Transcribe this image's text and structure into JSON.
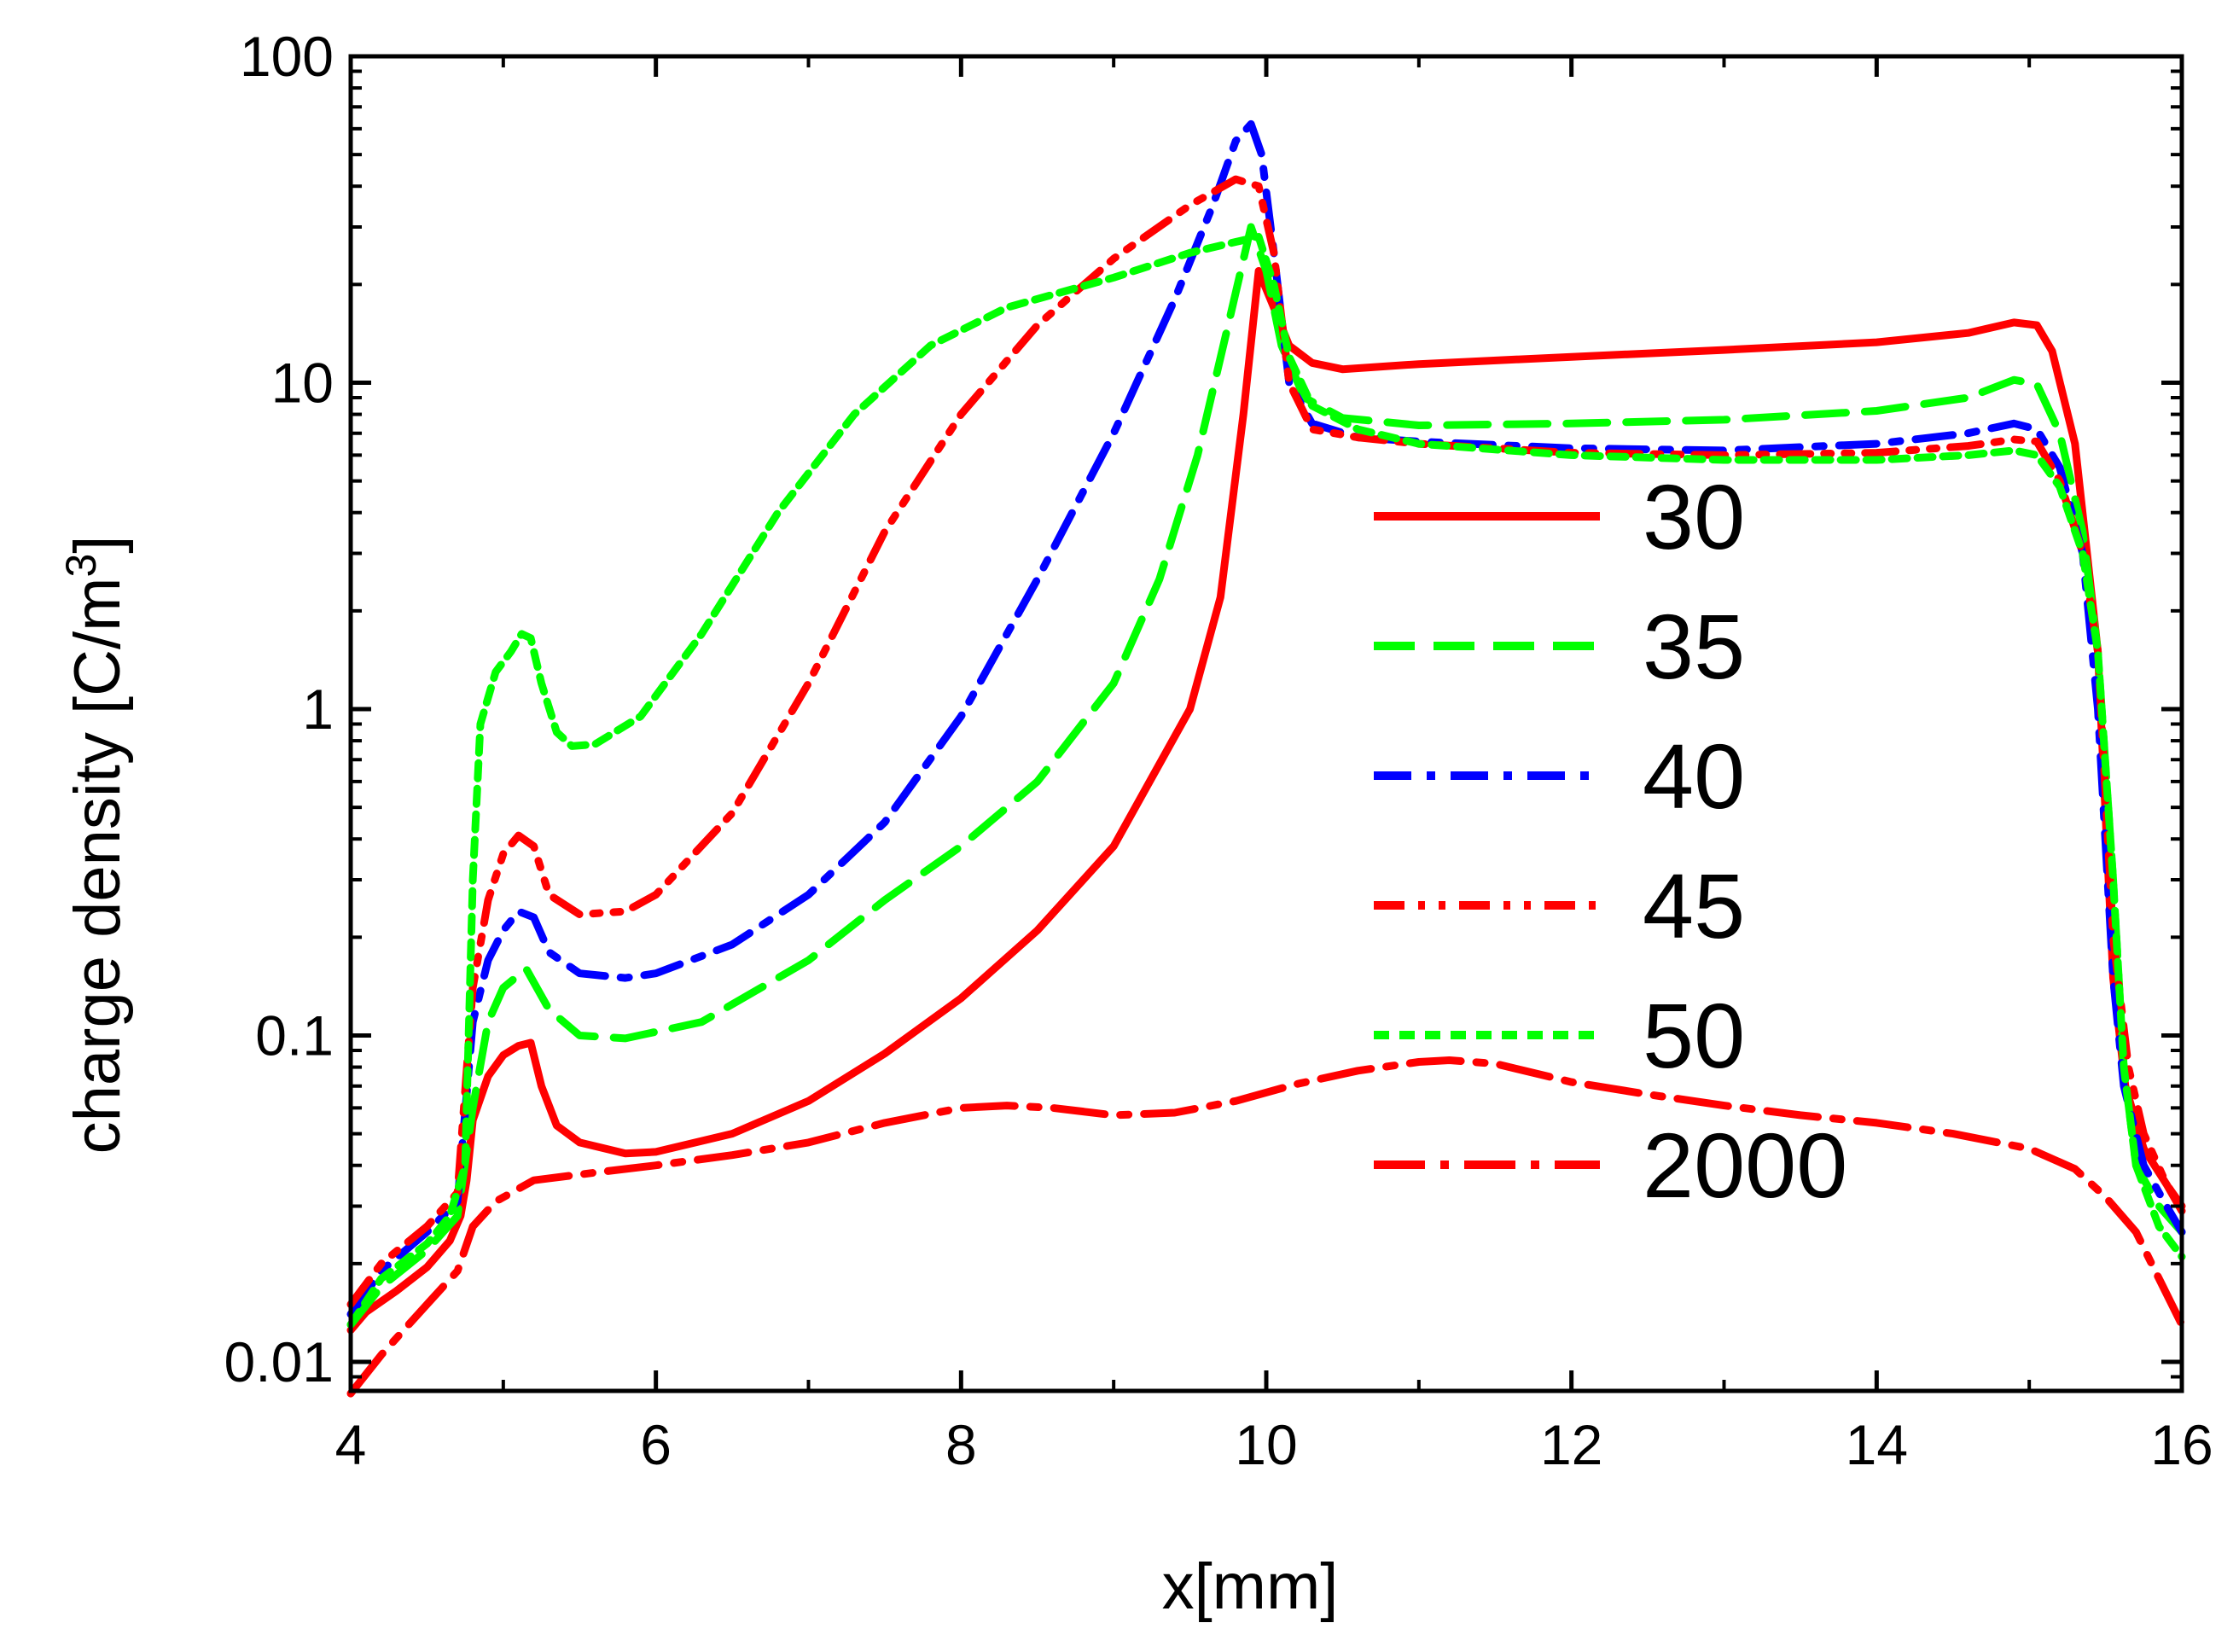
{
  "chart_data": {
    "type": "line",
    "title": "",
    "xlabel": "x[mm]",
    "ylabel": {
      "main": "charge density [C/m",
      "sup": "3",
      "close": "]"
    },
    "x_scale": "linear",
    "y_scale": "log",
    "xlim": [
      4,
      16
    ],
    "ylim": [
      0.008,
      100
    ],
    "x_ticks": [
      4,
      6,
      8,
      10,
      12,
      14,
      16
    ],
    "x_tick_labels": [
      "4",
      "6",
      "8",
      "10",
      "12",
      "14",
      "16"
    ],
    "y_ticks": [
      0.01,
      0.1,
      1,
      10,
      100
    ],
    "y_tick_labels": [
      "0.01",
      "0.1",
      "1",
      "10",
      "100"
    ],
    "grid": false,
    "legend_position": "right-center",
    "series": [
      {
        "name": "30",
        "color": "#ff0000",
        "dash": "solid",
        "points": [
          [
            4.0,
            0.0125
          ],
          [
            4.1,
            0.0142
          ],
          [
            4.3,
            0.0165
          ],
          [
            4.5,
            0.0195
          ],
          [
            4.65,
            0.0235
          ],
          [
            4.72,
            0.028
          ],
          [
            4.76,
            0.036
          ],
          [
            4.8,
            0.055
          ],
          [
            4.9,
            0.075
          ],
          [
            5.0,
            0.087
          ],
          [
            5.1,
            0.093
          ],
          [
            5.18,
            0.095
          ],
          [
            5.25,
            0.07
          ],
          [
            5.35,
            0.053
          ],
          [
            5.5,
            0.047
          ],
          [
            5.8,
            0.0435
          ],
          [
            6.0,
            0.044
          ],
          [
            6.5,
            0.05
          ],
          [
            7.0,
            0.063
          ],
          [
            7.5,
            0.088
          ],
          [
            8.0,
            0.13
          ],
          [
            8.5,
            0.21
          ],
          [
            9.0,
            0.38
          ],
          [
            9.5,
            1.0
          ],
          [
            9.7,
            2.2
          ],
          [
            9.85,
            8.0
          ],
          [
            9.95,
            22.0
          ],
          [
            10.05,
            17.0
          ],
          [
            10.15,
            13.0
          ],
          [
            10.3,
            11.5
          ],
          [
            10.5,
            11.0
          ],
          [
            11.0,
            11.4
          ],
          [
            12.0,
            12.0
          ],
          [
            13.0,
            12.6
          ],
          [
            14.0,
            13.3
          ],
          [
            14.6,
            14.2
          ],
          [
            14.9,
            15.3
          ],
          [
            15.05,
            15.0
          ],
          [
            15.15,
            12.5
          ],
          [
            15.3,
            6.5
          ],
          [
            15.45,
            1.5
          ],
          [
            15.55,
            0.15
          ],
          [
            15.63,
            0.07
          ],
          [
            15.75,
            0.045
          ],
          [
            15.9,
            0.035
          ],
          [
            16.0,
            0.029
          ]
        ]
      },
      {
        "name": "35",
        "color": "#00ff00",
        "dash": "long-dash",
        "points": [
          [
            4.0,
            0.013
          ],
          [
            4.2,
            0.017
          ],
          [
            4.5,
            0.022
          ],
          [
            4.7,
            0.028
          ],
          [
            4.8,
            0.06
          ],
          [
            4.9,
            0.11
          ],
          [
            5.0,
            0.14
          ],
          [
            5.15,
            0.16
          ],
          [
            5.3,
            0.12
          ],
          [
            5.5,
            0.1
          ],
          [
            5.8,
            0.098
          ],
          [
            6.3,
            0.11
          ],
          [
            7.0,
            0.17
          ],
          [
            7.5,
            0.26
          ],
          [
            8.0,
            0.38
          ],
          [
            8.5,
            0.6
          ],
          [
            9.0,
            1.2
          ],
          [
            9.3,
            2.5
          ],
          [
            9.55,
            6.0
          ],
          [
            9.75,
            15.0
          ],
          [
            9.9,
            30.0
          ],
          [
            10.0,
            22.0
          ],
          [
            10.1,
            13.0
          ],
          [
            10.25,
            9.0
          ],
          [
            10.5,
            7.8
          ],
          [
            11.0,
            7.4
          ],
          [
            12.0,
            7.5
          ],
          [
            13.0,
            7.7
          ],
          [
            14.0,
            8.2
          ],
          [
            14.6,
            9.0
          ],
          [
            14.9,
            10.2
          ],
          [
            15.05,
            9.9
          ],
          [
            15.2,
            7.0
          ],
          [
            15.35,
            3.5
          ],
          [
            15.45,
            1.5
          ],
          [
            15.55,
            0.3
          ],
          [
            15.62,
            0.08
          ],
          [
            15.7,
            0.04
          ],
          [
            15.85,
            0.03
          ],
          [
            16.0,
            0.025
          ]
        ]
      },
      {
        "name": "40",
        "color": "#0000ff",
        "dash": "dash-dot",
        "points": [
          [
            4.0,
            0.014
          ],
          [
            4.2,
            0.019
          ],
          [
            4.5,
            0.025
          ],
          [
            4.7,
            0.031
          ],
          [
            4.8,
            0.11
          ],
          [
            4.9,
            0.17
          ],
          [
            5.0,
            0.21
          ],
          [
            5.1,
            0.24
          ],
          [
            5.2,
            0.23
          ],
          [
            5.3,
            0.18
          ],
          [
            5.5,
            0.155
          ],
          [
            5.8,
            0.15
          ],
          [
            6.0,
            0.155
          ],
          [
            6.5,
            0.19
          ],
          [
            7.0,
            0.27
          ],
          [
            7.5,
            0.45
          ],
          [
            8.0,
            0.95
          ],
          [
            8.5,
            2.5
          ],
          [
            9.0,
            7.0
          ],
          [
            9.4,
            18.0
          ],
          [
            9.65,
            35.0
          ],
          [
            9.8,
            55.0
          ],
          [
            9.9,
            62.0
          ],
          [
            9.97,
            50.0
          ],
          [
            10.05,
            25.0
          ],
          [
            10.15,
            10.0
          ],
          [
            10.3,
            7.5
          ],
          [
            10.6,
            6.8
          ],
          [
            11.0,
            6.6
          ],
          [
            12.0,
            6.3
          ],
          [
            13.0,
            6.2
          ],
          [
            14.0,
            6.5
          ],
          [
            14.6,
            7.0
          ],
          [
            14.9,
            7.5
          ],
          [
            15.05,
            7.2
          ],
          [
            15.2,
            5.5
          ],
          [
            15.35,
            3.0
          ],
          [
            15.45,
            1.0
          ],
          [
            15.55,
            0.15
          ],
          [
            15.62,
            0.07
          ],
          [
            15.75,
            0.04
          ],
          [
            15.9,
            0.03
          ],
          [
            16.0,
            0.025
          ]
        ]
      },
      {
        "name": "45",
        "color": "#ff0000",
        "dash": "dash-dot-dot",
        "points": [
          [
            4.0,
            0.015
          ],
          [
            4.2,
            0.02
          ],
          [
            4.5,
            0.026
          ],
          [
            4.7,
            0.033
          ],
          [
            4.8,
            0.14
          ],
          [
            4.9,
            0.26
          ],
          [
            5.0,
            0.36
          ],
          [
            5.1,
            0.41
          ],
          [
            5.2,
            0.38
          ],
          [
            5.3,
            0.27
          ],
          [
            5.5,
            0.235
          ],
          [
            5.8,
            0.24
          ],
          [
            6.0,
            0.27
          ],
          [
            6.5,
            0.48
          ],
          [
            7.0,
            1.2
          ],
          [
            7.5,
            3.5
          ],
          [
            8.0,
            8.0
          ],
          [
            8.5,
            15.0
          ],
          [
            9.0,
            24.0
          ],
          [
            9.5,
            35.0
          ],
          [
            9.8,
            42.0
          ],
          [
            9.95,
            40.0
          ],
          [
            10.05,
            25.0
          ],
          [
            10.15,
            10.0
          ],
          [
            10.3,
            7.2
          ],
          [
            10.6,
            6.8
          ],
          [
            11.0,
            6.5
          ],
          [
            12.0,
            6.1
          ],
          [
            13.0,
            6.0
          ],
          [
            14.0,
            6.1
          ],
          [
            14.6,
            6.4
          ],
          [
            14.9,
            6.7
          ],
          [
            15.05,
            6.6
          ],
          [
            15.2,
            5.0
          ],
          [
            15.35,
            3.0
          ],
          [
            15.45,
            1.5
          ],
          [
            15.55,
            0.2
          ],
          [
            15.65,
            0.08
          ],
          [
            15.75,
            0.05
          ],
          [
            15.9,
            0.035
          ],
          [
            16.0,
            0.03
          ]
        ]
      },
      {
        "name": "50",
        "color": "#00ff00",
        "dash": "short-dash",
        "points": [
          [
            4.0,
            0.013
          ],
          [
            4.2,
            0.018
          ],
          [
            4.5,
            0.023
          ],
          [
            4.65,
            0.028
          ],
          [
            4.75,
            0.04
          ],
          [
            4.8,
            0.3
          ],
          [
            4.85,
            0.9
          ],
          [
            4.95,
            1.3
          ],
          [
            5.05,
            1.5
          ],
          [
            5.12,
            1.7
          ],
          [
            5.18,
            1.65
          ],
          [
            5.25,
            1.2
          ],
          [
            5.35,
            0.85
          ],
          [
            5.45,
            0.77
          ],
          [
            5.6,
            0.78
          ],
          [
            5.9,
            0.95
          ],
          [
            6.3,
            1.7
          ],
          [
            6.8,
            4.0
          ],
          [
            7.3,
            8.0
          ],
          [
            7.8,
            13.0
          ],
          [
            8.3,
            17.0
          ],
          [
            9.0,
            21.0
          ],
          [
            9.5,
            25.0
          ],
          [
            9.8,
            27.0
          ],
          [
            9.95,
            28.0
          ],
          [
            10.05,
            20.0
          ],
          [
            10.15,
            12.0
          ],
          [
            10.3,
            8.5
          ],
          [
            10.6,
            7.2
          ],
          [
            11.0,
            6.5
          ],
          [
            12.0,
            6.0
          ],
          [
            13.0,
            5.8
          ],
          [
            14.0,
            5.8
          ],
          [
            14.6,
            6.0
          ],
          [
            14.9,
            6.2
          ],
          [
            15.05,
            6.0
          ],
          [
            15.2,
            4.8
          ],
          [
            15.35,
            3.0
          ],
          [
            15.45,
            1.5
          ],
          [
            15.55,
            0.3
          ],
          [
            15.62,
            0.08
          ],
          [
            15.7,
            0.04
          ],
          [
            15.85,
            0.026
          ],
          [
            16.0,
            0.021
          ]
        ]
      },
      {
        "name": "2000",
        "color": "#ff0000",
        "dash": "dash-dot-long",
        "points": [
          [
            4.0,
            0.008
          ],
          [
            4.2,
            0.0105
          ],
          [
            4.5,
            0.015
          ],
          [
            4.7,
            0.019
          ],
          [
            4.8,
            0.026
          ],
          [
            4.95,
            0.031
          ],
          [
            5.2,
            0.036
          ],
          [
            5.6,
            0.038
          ],
          [
            6.0,
            0.04
          ],
          [
            6.5,
            0.043
          ],
          [
            7.0,
            0.047
          ],
          [
            7.5,
            0.054
          ],
          [
            8.0,
            0.06
          ],
          [
            8.3,
            0.061
          ],
          [
            8.6,
            0.06
          ],
          [
            9.0,
            0.057
          ],
          [
            9.4,
            0.058
          ],
          [
            9.8,
            0.063
          ],
          [
            10.2,
            0.071
          ],
          [
            10.6,
            0.078
          ],
          [
            11.0,
            0.083
          ],
          [
            11.2,
            0.084
          ],
          [
            11.5,
            0.082
          ],
          [
            12.0,
            0.072
          ],
          [
            12.5,
            0.066
          ],
          [
            13.0,
            0.061
          ],
          [
            13.5,
            0.057
          ],
          [
            14.0,
            0.054
          ],
          [
            14.5,
            0.05
          ],
          [
            15.0,
            0.045
          ],
          [
            15.3,
            0.039
          ],
          [
            15.5,
            0.032
          ],
          [
            15.7,
            0.025
          ],
          [
            15.85,
            0.018
          ],
          [
            16.0,
            0.013
          ]
        ]
      }
    ]
  }
}
